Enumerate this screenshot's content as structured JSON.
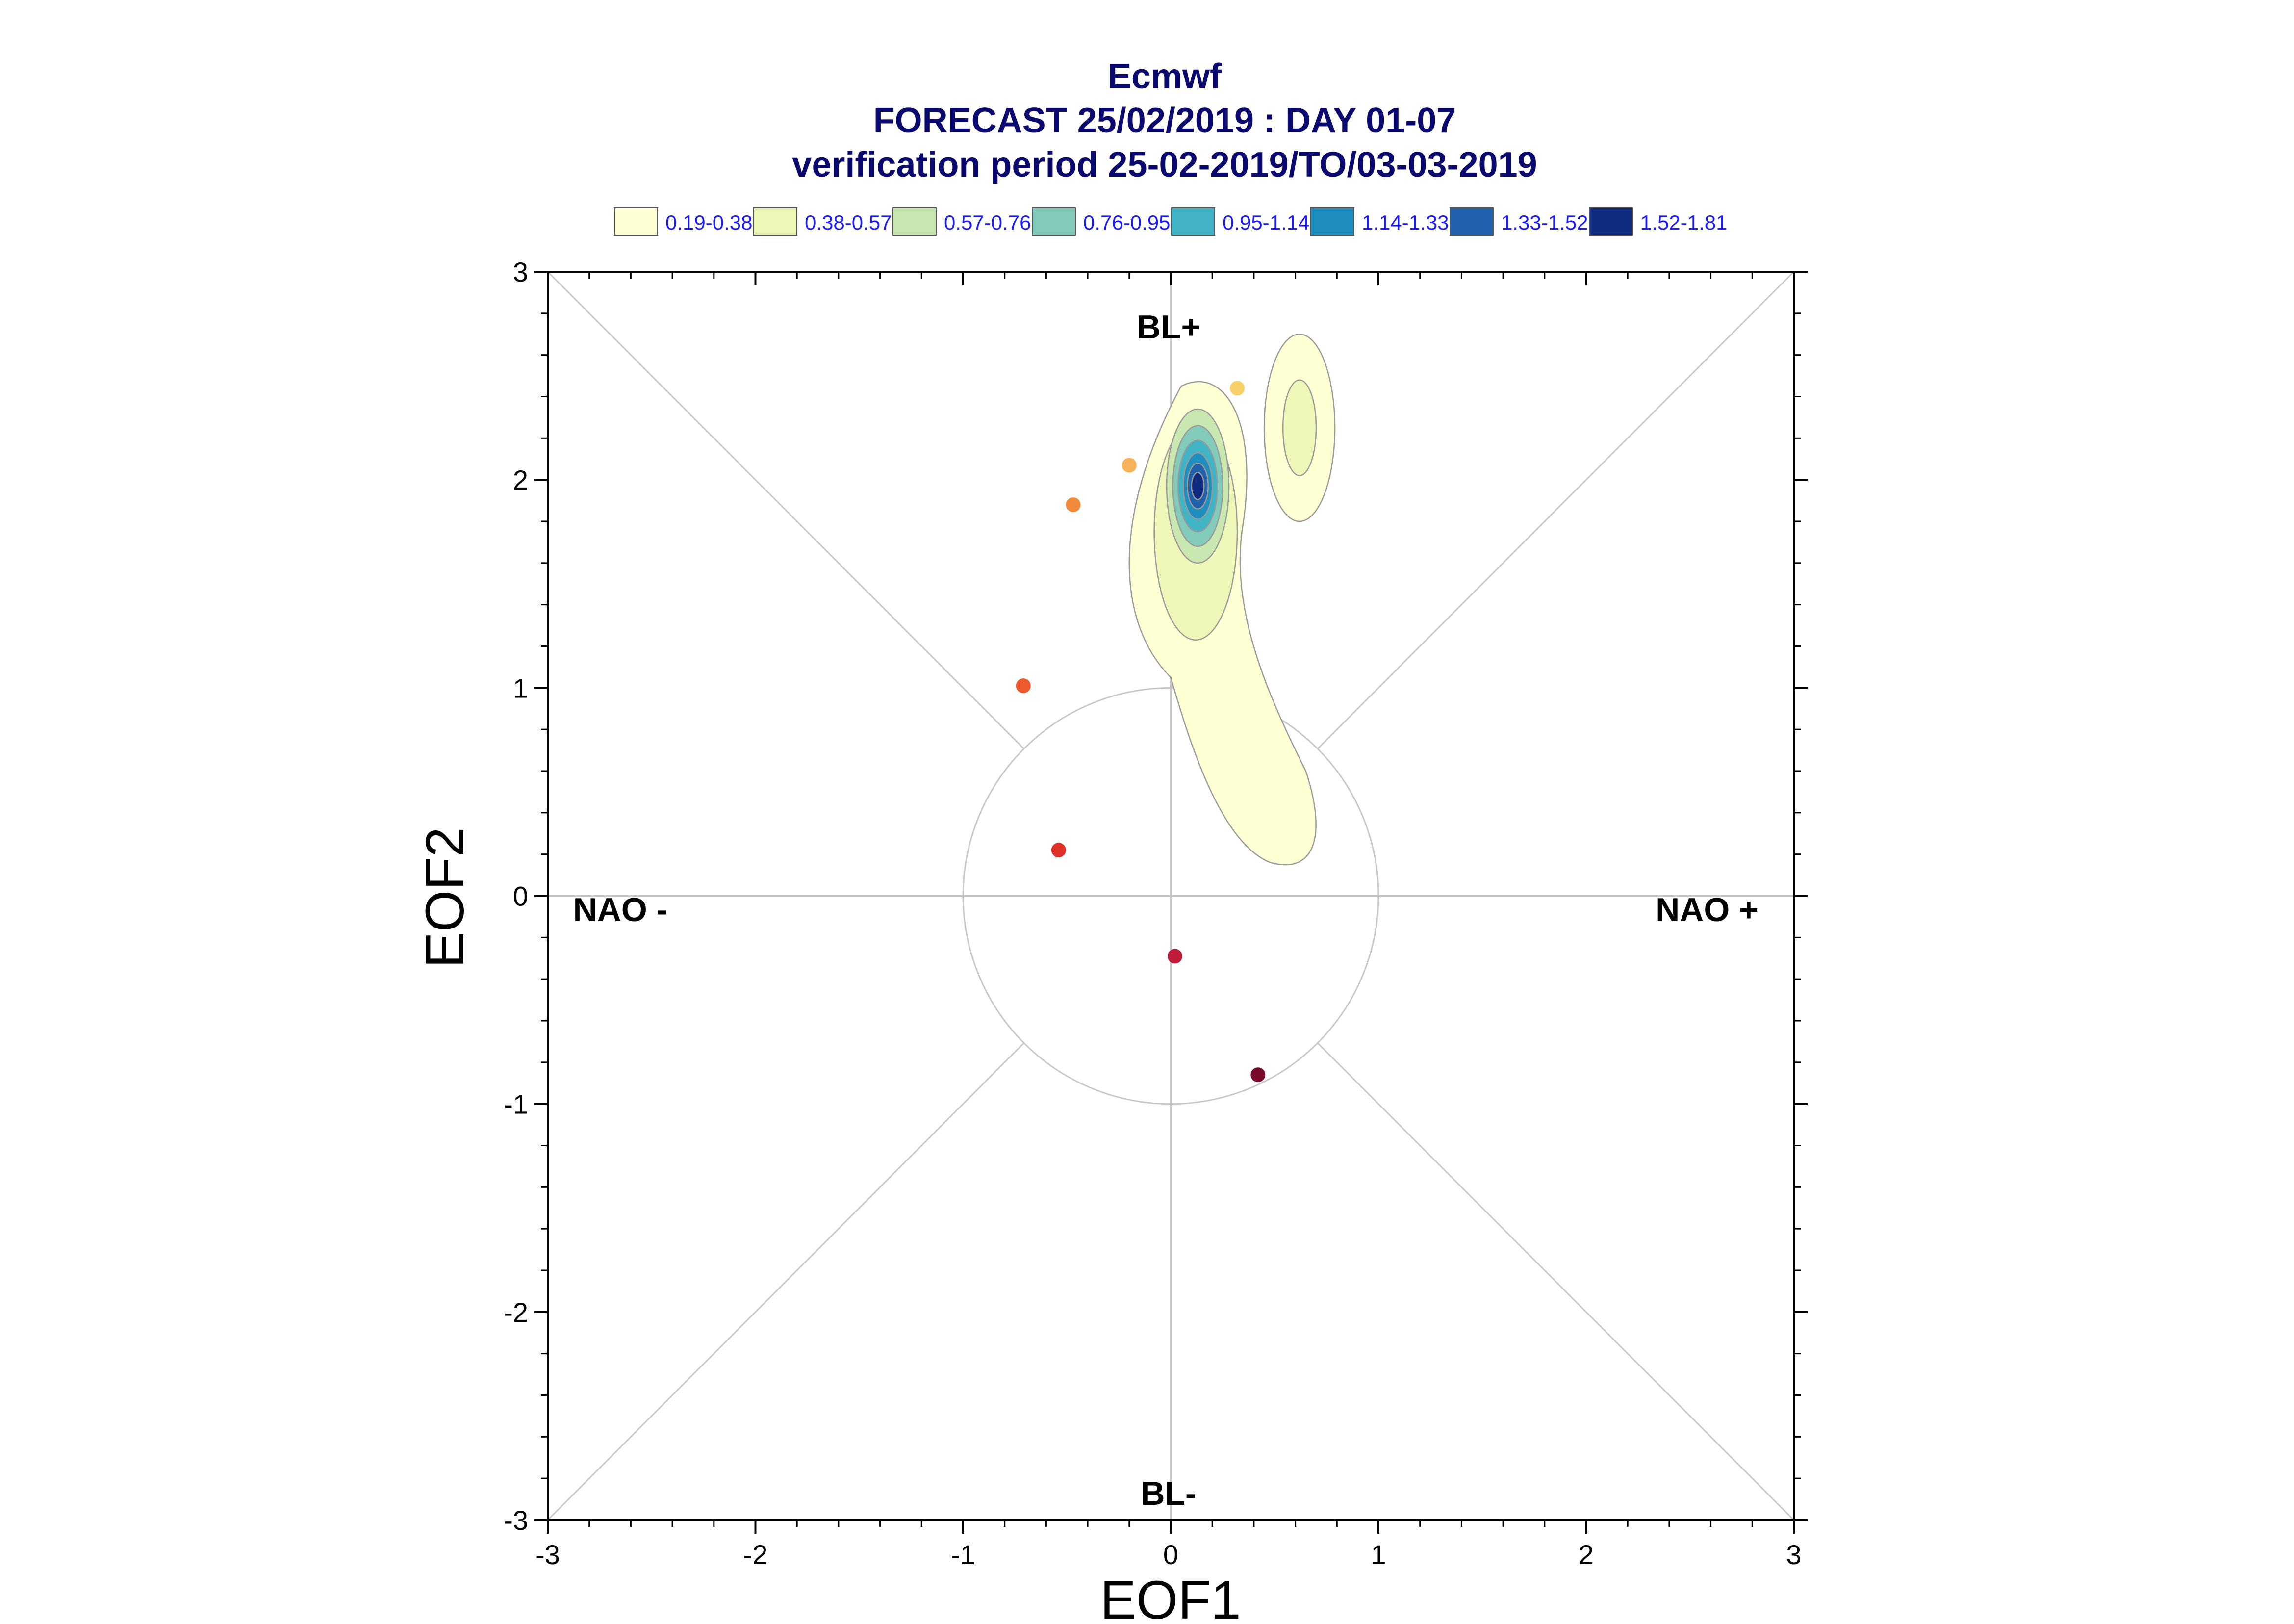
{
  "title": {
    "line1": "Ecmwf",
    "line2": "FORECAST 25/02/2019 : DAY 01-07",
    "line3": "verification period 25-02-2019/TO/03-03-2019"
  },
  "legend": [
    {
      "label": "0.19-0.38",
      "color": "#ffffd4"
    },
    {
      "label": "0.38-0.57",
      "color": "#eef7b8"
    },
    {
      "label": "0.57-0.76",
      "color": "#c9e8b0"
    },
    {
      "label": "0.76-0.95",
      "color": "#82cbbb"
    },
    {
      "label": "0.95-1.14",
      "color": "#40b4c4"
    },
    {
      "label": "1.14-1.33",
      "color": "#1f8fc0"
    },
    {
      "label": "1.33-1.52",
      "color": "#2161ab"
    },
    {
      "label": "1.52-1.81",
      "color": "#0e2b80"
    }
  ],
  "regimes": {
    "top": "BL+",
    "bottom": "BL-",
    "left": "NAO -",
    "right": "NAO +"
  },
  "chart_data": {
    "type": "scatter",
    "xlabel": "EOF1",
    "ylabel": "EOF2",
    "xlim": [
      -3,
      3
    ],
    "ylim": [
      -3,
      3
    ],
    "xticks": [
      "-3",
      "-2",
      "-1",
      "0",
      "1",
      "2",
      "3"
    ],
    "yticks": [
      "-3",
      "-2",
      "-1",
      "0",
      "1",
      "2",
      "3"
    ],
    "unit_circle_radius": 1,
    "trajectory": [
      {
        "day": 1,
        "x": 0.32,
        "y": 2.44,
        "color": "#f7d06a"
      },
      {
        "day": 2,
        "x": -0.2,
        "y": 2.07,
        "color": "#f6b35a"
      },
      {
        "day": 3,
        "x": -0.47,
        "y": 1.88,
        "color": "#f28a3c"
      },
      {
        "day": 4,
        "x": -0.71,
        "y": 1.01,
        "color": "#ec5a2e"
      },
      {
        "day": 5,
        "x": -0.54,
        "y": 0.22,
        "color": "#e0302a"
      },
      {
        "day": 6,
        "x": 0.02,
        "y": -0.29,
        "color": "#c01c3a"
      },
      {
        "day": 7,
        "x": 0.42,
        "y": -0.86,
        "color": "#7a0a2a"
      }
    ],
    "density_contours": {
      "levels": [
        "0.19-0.38",
        "0.38-0.57",
        "0.57-0.76",
        "0.76-0.95",
        "0.95-1.14",
        "1.14-1.33",
        "1.33-1.52",
        "1.52-1.81"
      ],
      "max_center": {
        "x": 0.13,
        "y": 1.97
      }
    }
  }
}
